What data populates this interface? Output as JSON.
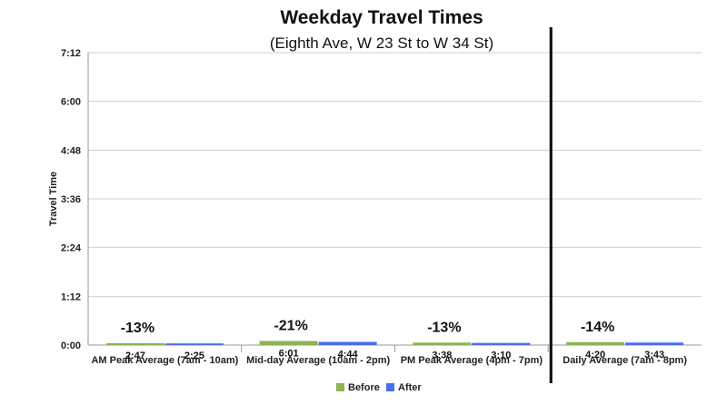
{
  "chart_data": {
    "type": "bar",
    "title": "Weekday Travel Times",
    "subtitle": "(Eighth Ave, W 23 St to W 34 St)",
    "ylabel": "Travel Time",
    "xlabel": "",
    "ylim_minutes": [
      0,
      432
    ],
    "yticks": [
      "0:00",
      "1:12",
      "2:24",
      "3:36",
      "4:48",
      "6:00",
      "7:12"
    ],
    "categories": [
      "AM Peak Average (7am - 10am)",
      "Mid-day Average (10am - 2pm)",
      "PM Peak Average (4pm - 7pm)",
      "Daily Average (7am - 8pm)"
    ],
    "series": [
      {
        "name": "Before",
        "color": "#8db356",
        "values_seconds": [
          167,
          361,
          218,
          260
        ],
        "labels": [
          "2:47",
          "6:01",
          "3:38",
          "4:20"
        ]
      },
      {
        "name": "After",
        "color": "#4a6ef0",
        "values_seconds": [
          145,
          284,
          190,
          223
        ],
        "labels": [
          "2:25",
          "4:44",
          "3:10",
          "3:43"
        ]
      }
    ],
    "percent_change": [
      "-13%",
      "-21%",
      "-13%",
      "-14%"
    ],
    "grid": true,
    "legend_position": "bottom-center"
  }
}
